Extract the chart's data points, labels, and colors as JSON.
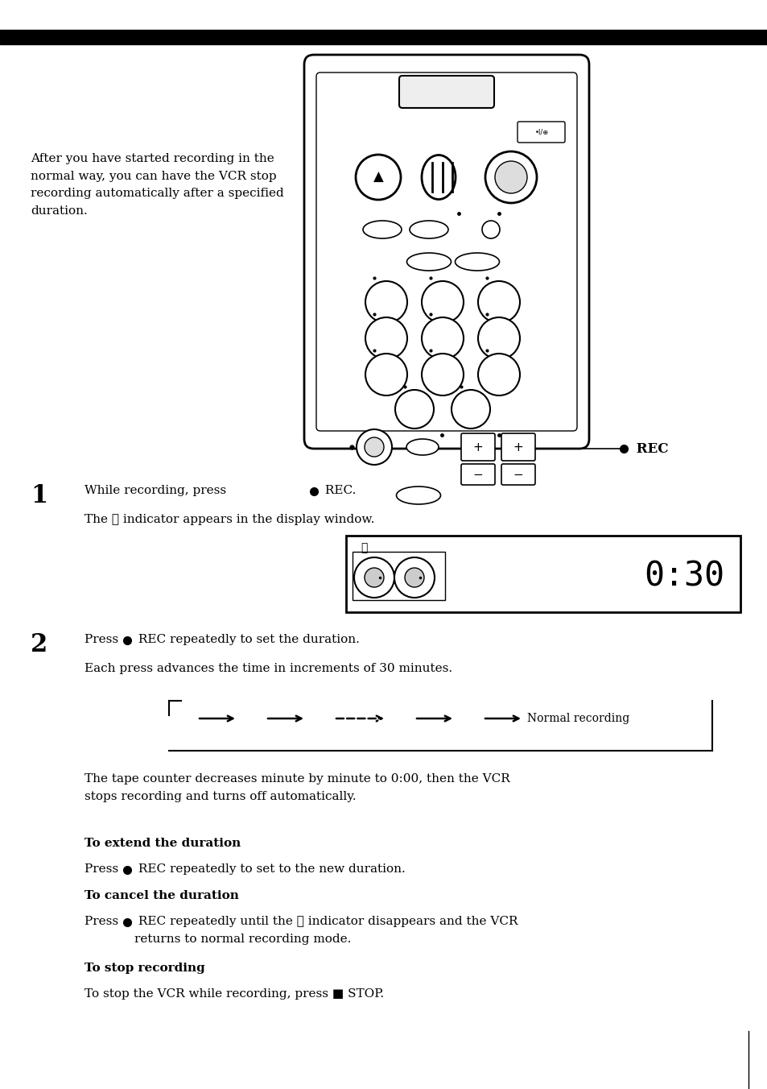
{
  "bg_color": "#ffffff",
  "intro_text": "After you have started recording in the\nnormal way, you can have the VCR stop\nrecording automatically after a specified\nduration.",
  "step1_text": "While recording, press ● REC.",
  "step1_sub": "The ⌛ indicator appears in the display window.",
  "step2_text": "Press ● REC repeatedly to set the duration.",
  "step2_sub": "Each press advances the time in increments of 30 minutes.",
  "tape_text": "The tape counter decreases minute by minute to 0:00, then the VCR\nstops recording and turns off automatically.",
  "extend_title": "To extend the duration",
  "extend_body": "Press ● REC repeatedly to set to the new duration.",
  "cancel_title": "To cancel the duration",
  "cancel_body": "Press ● REC repeatedly until the ⌛ indicator disappears and the VCR\nreturns to normal recording mode.",
  "stop_title": "To stop recording",
  "stop_body": "To stop the VCR while recording, press ■ STOP.",
  "normal_recording": "Normal recording",
  "rec_label": "● REC"
}
